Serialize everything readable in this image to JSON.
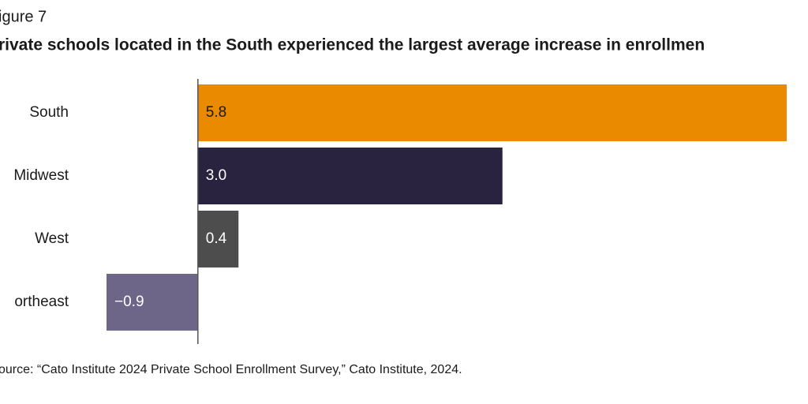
{
  "chart_data": {
    "type": "barh",
    "figure_label": "igure 7",
    "title": "rivate schools located in the South experienced the largest average increase in enrollmen",
    "source": "ource: “Cato Institute 2024 Private School Enrollment Survey,” Cato Institute, 2024.",
    "categories": [
      "South",
      "Midwest",
      "West",
      "ortheast"
    ],
    "values": [
      5.8,
      3.0,
      0.4,
      -0.9
    ],
    "value_labels": [
      "5.8",
      "3.0",
      "0.4",
      "−0.9"
    ],
    "colors": [
      "#e98a00",
      "#2a2340",
      "#4d4d4d",
      "#6e6689"
    ],
    "xlim": [
      -0.9,
      5.8
    ]
  }
}
